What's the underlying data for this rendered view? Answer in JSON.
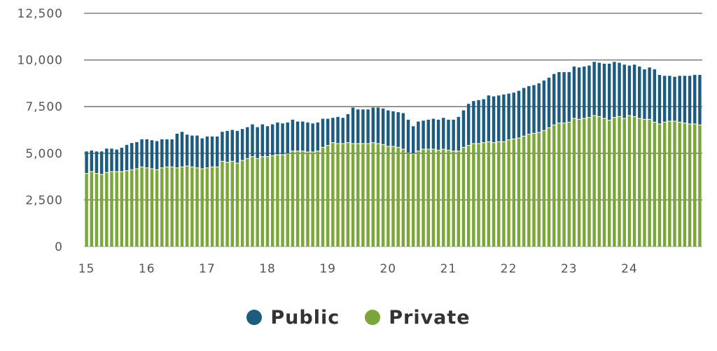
{
  "chart_data": {
    "type": "bar",
    "stacked": true,
    "ylim": [
      0,
      12500
    ],
    "yticks": [
      "0",
      "2,500",
      "5,000",
      "7,500",
      "10,000",
      "12,500"
    ],
    "ytick_values": [
      0,
      2500,
      5000,
      7500,
      10000,
      12500
    ],
    "xticks": [
      "15",
      "16",
      "17",
      "18",
      "19",
      "20",
      "21",
      "22",
      "23",
      "24"
    ],
    "bars_per_year": 12,
    "grid": "horizontal",
    "legend_position": "bottom-center",
    "colors": {
      "public": "#1d5c7e",
      "private": "#7ba63a",
      "grid": "#666666"
    },
    "series": [
      {
        "name": "Public",
        "color": "#1d5c7e",
        "values": [
          1200,
          1150,
          1200,
          1250,
          1300,
          1250,
          1200,
          1300,
          1400,
          1450,
          1450,
          1500,
          1550,
          1550,
          1550,
          1550,
          1500,
          1500,
          1850,
          1900,
          1700,
          1700,
          1750,
          1650,
          1700,
          1650,
          1650,
          1600,
          1700,
          1700,
          1750,
          1700,
          1700,
          1750,
          1700,
          1750,
          1650,
          1700,
          1750,
          1700,
          1700,
          1700,
          1600,
          1600,
          1600,
          1550,
          1550,
          1550,
          1450,
          1350,
          1450,
          1400,
          1550,
          1950,
          1850,
          1850,
          1850,
          1900,
          1950,
          1950,
          1950,
          1900,
          1900,
          1950,
          1800,
          1500,
          1600,
          1550,
          1600,
          1650,
          1650,
          1700,
          1650,
          1700,
          1850,
          2000,
          2250,
          2300,
          2350,
          2350,
          2500,
          2500,
          2500,
          2550,
          2500,
          2500,
          2550,
          2600,
          2600,
          2600,
          2650,
          2700,
          2700,
          2750,
          2750,
          2750,
          2700,
          2800,
          2800,
          2800,
          2800,
          2900,
          2900,
          2950,
          3050,
          3000,
          2900,
          2900,
          2700,
          2800,
          2800,
          2700,
          2800,
          2850,
          2650,
          2500,
          2450,
          2400,
          2500,
          2550,
          2600,
          2650,
          2700
        ]
      },
      {
        "name": "Private",
        "color": "#7ba63a",
        "values": [
          3900,
          4000,
          3900,
          3850,
          3950,
          4000,
          4000,
          4000,
          4050,
          4100,
          4150,
          4250,
          4200,
          4150,
          4100,
          4200,
          4250,
          4250,
          4200,
          4250,
          4300,
          4250,
          4200,
          4150,
          4200,
          4250,
          4250,
          4550,
          4500,
          4550,
          4450,
          4600,
          4700,
          4800,
          4700,
          4800,
          4800,
          4850,
          4900,
          4900,
          4950,
          5100,
          5100,
          5100,
          5050,
          5050,
          5100,
          5300,
          5400,
          5550,
          5500,
          5500,
          5550,
          5500,
          5500,
          5500,
          5500,
          5550,
          5500,
          5450,
          5350,
          5350,
          5300,
          5200,
          5000,
          4950,
          5100,
          5200,
          5200,
          5200,
          5150,
          5200,
          5150,
          5100,
          5100,
          5300,
          5400,
          5500,
          5500,
          5550,
          5600,
          5550,
          5600,
          5600,
          5700,
          5750,
          5800,
          5900,
          6000,
          6050,
          6100,
          6200,
          6350,
          6500,
          6600,
          6600,
          6650,
          6850,
          6800,
          6850,
          6900,
          7000,
          6950,
          6850,
          6750,
          6900,
          6950,
          6850,
          7000,
          6950,
          6850,
          6800,
          6800,
          6650,
          6550,
          6650,
          6700,
          6700,
          6650,
          6600,
          6550,
          6550,
          6500
        ]
      }
    ]
  }
}
